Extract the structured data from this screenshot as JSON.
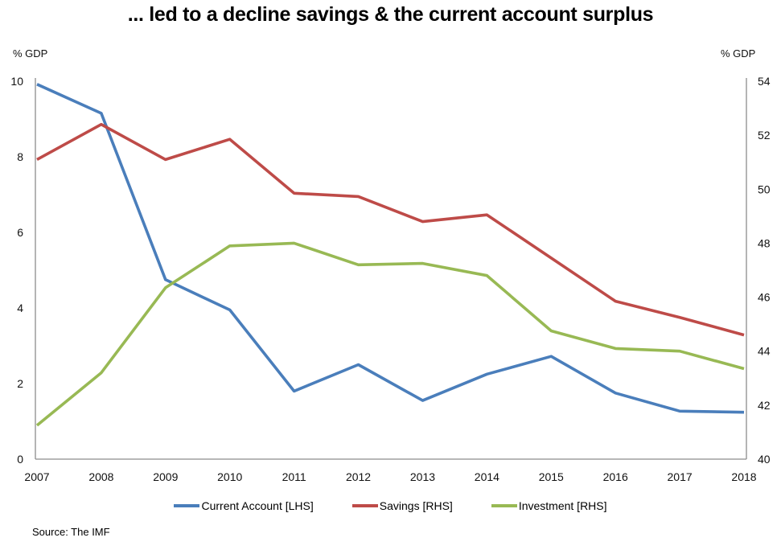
{
  "chart_data": {
    "type": "line",
    "title": "... led to a decline savings & the current account surplus",
    "xlabel": "",
    "ylabel_left": "% GDP",
    "ylabel_right": "% GDP",
    "categories": [
      "2007",
      "2008",
      "2009",
      "2010",
      "2011",
      "2012",
      "2013",
      "2014",
      "2015",
      "2016",
      "2017",
      "2018"
    ],
    "y_left": {
      "min": 0,
      "max": 10,
      "ticks": [
        0,
        2,
        4,
        6,
        8,
        10
      ]
    },
    "y_right": {
      "min": 40,
      "max": 54,
      "ticks": [
        40,
        42,
        44,
        46,
        48,
        50,
        52,
        54
      ]
    },
    "grid": false,
    "legend_position": "bottom",
    "series": [
      {
        "name": "Current Account [LHS]",
        "axis": "left",
        "color": "#4a7ebb",
        "values": [
          9.92,
          9.15,
          4.75,
          3.95,
          1.8,
          2.5,
          1.55,
          2.25,
          2.72,
          1.75,
          1.27,
          1.24
        ]
      },
      {
        "name": "Savings [RHS]",
        "axis": "right",
        "color": "#be4b48",
        "values": [
          51.1,
          52.4,
          51.1,
          51.85,
          49.85,
          49.73,
          48.8,
          49.05,
          47.45,
          45.85,
          45.25,
          44.6
        ]
      },
      {
        "name": "Investment [RHS]",
        "axis": "right",
        "color": "#98b954",
        "values": [
          41.25,
          43.2,
          46.35,
          47.9,
          48.0,
          47.2,
          47.25,
          46.8,
          44.75,
          44.1,
          44.0,
          43.35
        ]
      }
    ],
    "source": "Source: The IMF"
  }
}
